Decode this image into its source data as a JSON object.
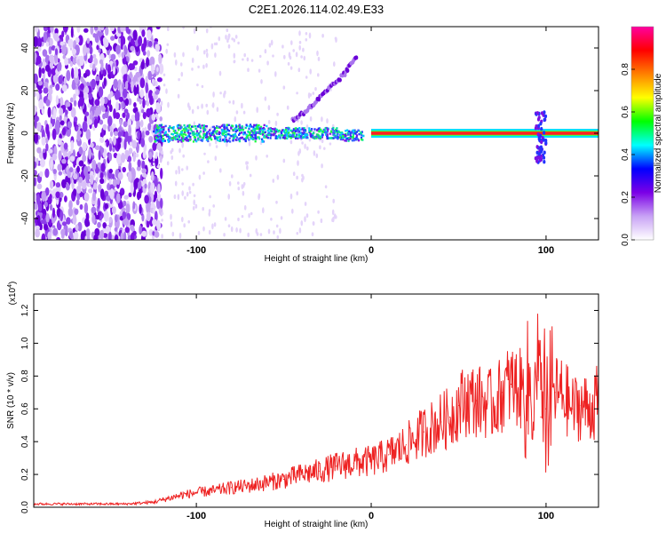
{
  "title": "C2E1.2026.114.02.49.E33",
  "chart_data": [
    {
      "type": "heatmap",
      "xlabel": "Height of straight line (km)",
      "ylabel": "Frequency (Hz)",
      "xlim": [
        -193,
        130
      ],
      "ylim": [
        -50,
        50
      ],
      "xticks": [
        -100,
        0,
        100
      ],
      "yticks": [
        -40,
        -20,
        0,
        20,
        40
      ],
      "colorbar": {
        "label": "Normalized spectral amplitude",
        "range": [
          0,
          1
        ],
        "ticks": [
          "0.0",
          "0.2",
          "0.4",
          "0.6",
          "0.8"
        ],
        "colormap": [
          "#ffffff",
          "#c8a2f5",
          "#7b00e6",
          "#0000ff",
          "#00ffff",
          "#00ff00",
          "#ffff00",
          "#ff8000",
          "#ff0000",
          "#ff00a0"
        ]
      },
      "features": {
        "noise_region_x": [
          -193,
          -120
        ],
        "main_band_x": [
          -125,
          130
        ],
        "main_band_frequency_hz": 0,
        "drifting_trace": {
          "x": [
            -45,
            -35,
            -25,
            -15,
            -8
          ],
          "frequency_hz": [
            6,
            12,
            20,
            28,
            37
          ]
        },
        "strong_line_x": [
          0,
          130
        ],
        "disturbance_x": 97
      }
    },
    {
      "type": "line",
      "xlabel": "Height of straight line (km)",
      "ylabel": "SNR (10 * v/v)",
      "yscale_label": "(x10",
      "yscale_exp": "4",
      "yscale_close": ")",
      "xlim": [
        -193,
        130
      ],
      "ylim": [
        0,
        1.3
      ],
      "xticks": [
        -100,
        0,
        100
      ],
      "yticks": [
        "0.0",
        "0.2",
        "0.4",
        "0.6",
        "0.8",
        "1.0",
        "1.2"
      ],
      "series": [
        {
          "color": "#ee2222",
          "x": [
            -193,
            -180,
            -160,
            -140,
            -125,
            -110,
            -100,
            -90,
            -80,
            -70,
            -60,
            -50,
            -40,
            -30,
            -20,
            -10,
            0,
            10,
            20,
            30,
            40,
            45,
            50,
            55,
            60,
            65,
            70,
            75,
            80,
            85,
            90,
            95,
            97,
            100,
            105,
            110,
            115,
            120,
            125,
            130
          ],
          "y": [
            0.02,
            0.02,
            0.02,
            0.02,
            0.03,
            0.07,
            0.09,
            0.1,
            0.12,
            0.13,
            0.15,
            0.17,
            0.2,
            0.22,
            0.25,
            0.27,
            0.28,
            0.32,
            0.38,
            0.46,
            0.52,
            0.55,
            0.62,
            0.66,
            0.65,
            0.64,
            0.62,
            0.7,
            0.75,
            0.72,
            0.7,
            0.8,
            0.55,
            0.6,
            0.7,
            0.68,
            0.6,
            0.62,
            0.6,
            0.65
          ]
        }
      ]
    }
  ]
}
